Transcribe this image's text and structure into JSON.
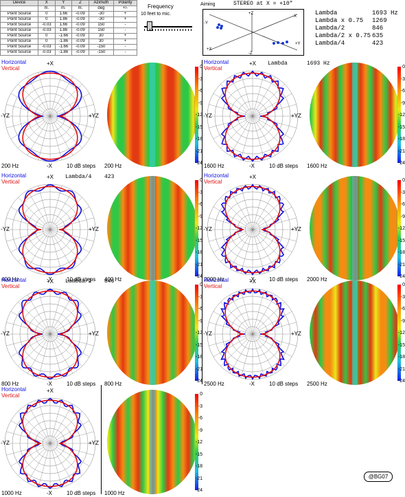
{
  "source_table": {
    "headers": [
      "Device",
      "X",
      "Y",
      "Z",
      "Azimuth",
      "Polarity"
    ],
    "units": [
      "",
      "m.",
      "m.",
      "m.",
      "deg",
      "+/-"
    ],
    "rows": [
      [
        "Point Source",
        "0",
        "1.66",
        "-0.09",
        "-30",
        "+"
      ],
      [
        "Point Source",
        "0",
        "1.86",
        "-0.09",
        "-30",
        "+"
      ],
      [
        "Point Source",
        "-0.03",
        "1.66",
        "-0.09",
        "150",
        "-"
      ],
      [
        "Point Source",
        "-0.03",
        "1.86",
        "-0.09",
        "150",
        "-"
      ],
      [
        "Point Source",
        "0",
        "-1.66",
        "-0.09",
        "30",
        "+"
      ],
      [
        "Point Source",
        "0",
        "-1.86",
        "-0.09",
        "30",
        "+"
      ],
      [
        "Point Source",
        "-0.03",
        "-1.66",
        "-0.09",
        "-150",
        "-"
      ],
      [
        "Point Source",
        "-0.03",
        "-1.86",
        "-0.09",
        "-150",
        "-"
      ]
    ]
  },
  "frequency": {
    "title": "Frequency",
    "note": "10 feet to mic."
  },
  "aiming": {
    "title": "Aiming",
    "axis_labels": {
      "z_top": "+Z",
      "z_bottom": "-Z",
      "x_left": "+X",
      "x_right": "-X",
      "y_left": "-Y",
      "y_right": "+Y"
    }
  },
  "stereo_label": "STEREO at X = +10\"",
  "lambda_table": [
    {
      "label": "Lambda",
      "value": "1693 Hz"
    },
    {
      "label": "Lambda x 0.75",
      "value": "1269"
    },
    {
      "label": "Lambda/2",
      "value": "846"
    },
    {
      "label": "Lambda/2 x 0.75",
      "value": "635"
    },
    {
      "label": "Lambda/4",
      "value": "423"
    }
  ],
  "polar_common": {
    "horizontal": "Horizontal",
    "vertical": "Vertical",
    "top": "+X",
    "bottom": "-X",
    "left": "-YZ",
    "right": "+YZ",
    "steps": "10 dB steps",
    "colors": {
      "horizontal": "#1010e0",
      "vertical": "#e01010",
      "grid": "#808080"
    }
  },
  "colorbar_ticks": [
    "0",
    "-3",
    "-6",
    "-9",
    "-12",
    "-15",
    "-18",
    "-21",
    "-24"
  ],
  "plots": [
    {
      "freq": "200 Hz",
      "annotation": "",
      "note": ""
    },
    {
      "freq": "400 Hz",
      "annotation": "Lambda/4",
      "note": "423"
    },
    {
      "freq": "800 Hz",
      "annotation": "Lambda/2",
      "note": "846"
    },
    {
      "freq": "1000 Hz",
      "annotation": "",
      "note": ""
    },
    {
      "freq": "1600 Hz",
      "annotation": "Lambda",
      "note": "1693 Hz"
    },
    {
      "freq": "2000 Hz",
      "annotation": "",
      "note": ""
    },
    {
      "freq": "2500 Hz",
      "annotation": "",
      "note": ""
    }
  ],
  "signature": "@BG07"
}
